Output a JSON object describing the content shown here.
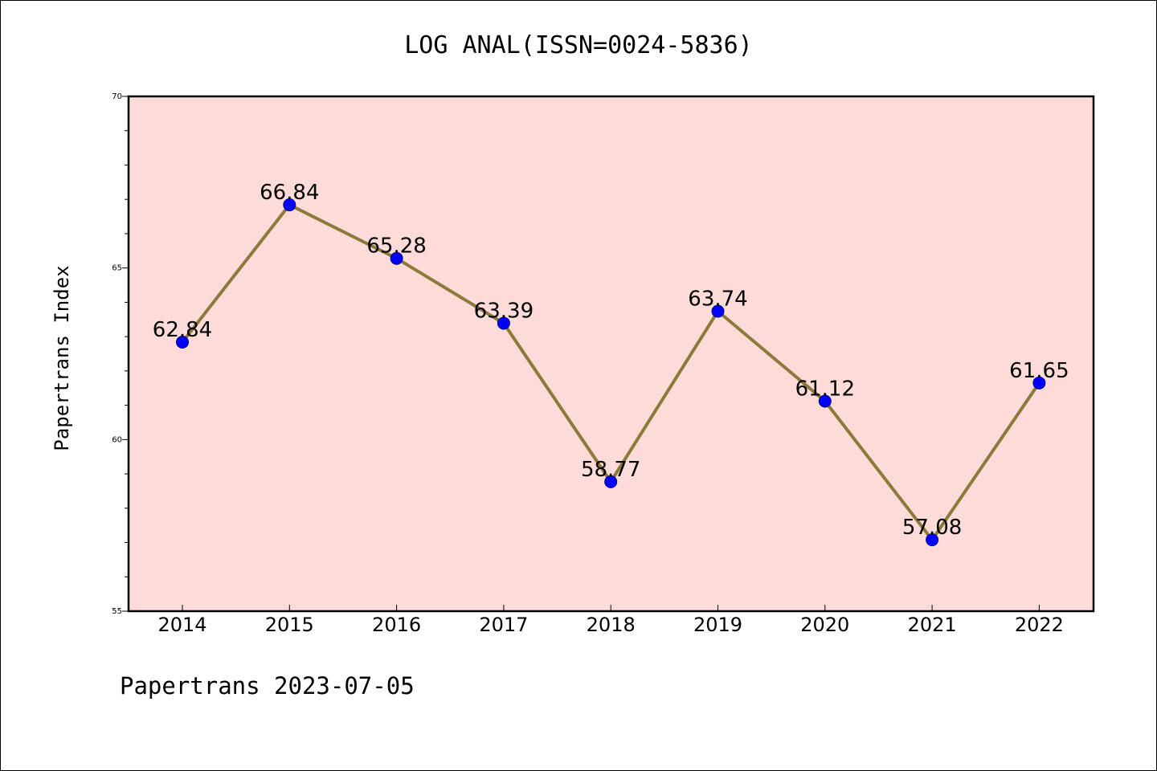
{
  "chart_data": {
    "type": "line",
    "title": "LOG ANAL(ISSN=0024-5836)",
    "ylabel": "Papertrans Index",
    "xlabel": "",
    "categories": [
      "2014",
      "2015",
      "2016",
      "2017",
      "2018",
      "2019",
      "2020",
      "2021",
      "2022"
    ],
    "series": [
      {
        "values": [
          62.84,
          66.84,
          65.28,
          63.39,
          58.77,
          63.74,
          61.12,
          57.08,
          61.65
        ],
        "labels": [
          "62.84",
          "66.84",
          "65.28",
          "63.39",
          "58.77",
          "63.74",
          "61.12",
          "57.08",
          "61.65"
        ]
      }
    ],
    "ylim": [
      55,
      70
    ],
    "yticks": [
      "55",
      "60",
      "65",
      "70"
    ],
    "grid": false,
    "colors": {
      "plot_background": "#fddbd8",
      "line": "#8b7a3a",
      "marker": "#0000ff"
    },
    "footer": "Papertrans 2023-07-05"
  }
}
